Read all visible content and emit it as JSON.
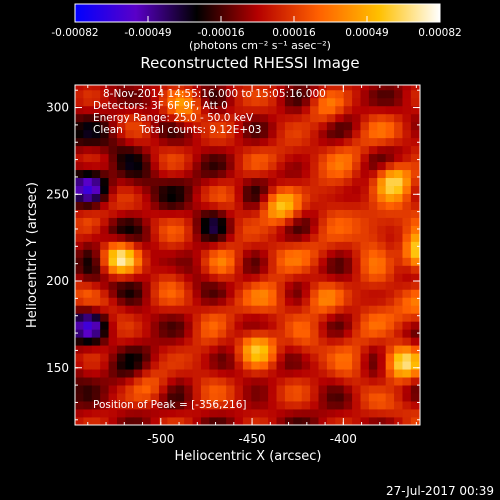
{
  "chart_data": {
    "type": "heatmap",
    "title": "Reconstructed RHESSI Image",
    "xlabel": "Heliocentric X (arcsec)",
    "ylabel": "Heliocentric Y (arcsec)",
    "xlim": [
      -547,
      -358
    ],
    "ylim": [
      117,
      313
    ],
    "xticks": [
      -500,
      -450,
      -400
    ],
    "yticks": [
      150,
      200,
      250,
      300
    ],
    "colorbar": {
      "label": "(photons cm⁻² s⁻¹ asec⁻²)",
      "ticks": [
        "-0.00082",
        "-0.00049",
        "-0.00016",
        "0.00016",
        "0.00049",
        "0.00082"
      ],
      "range": [
        -0.00082,
        0.00082
      ],
      "colors": [
        "#0000ff",
        "#5a00c8",
        "#000000",
        "#b40000",
        "#ff6000",
        "#ffc000",
        "#ffffff"
      ]
    },
    "annotations": [
      "8-Nov-2014 14:55:16.000 to 15:05:16.000",
      "Detectors: 3F 6F 9F, Att 0",
      "Energy Range: 25.0 - 50.0 keV",
      "Clean     Total counts: 9.12E+03"
    ],
    "peak_label": "Position of Peak = [-356,216]",
    "peak_position": [
      -356,
      216
    ],
    "sources": [
      {
        "x": -523,
        "y": 213,
        "intensity": 0.0007
      },
      {
        "x": -435,
        "y": 243,
        "intensity": 0.00062
      },
      {
        "x": -447,
        "y": 162,
        "intensity": 0.00058
      },
      {
        "x": -372,
        "y": 258,
        "intensity": 0.00065
      },
      {
        "x": -356,
        "y": 216,
        "intensity": 0.00082
      },
      {
        "x": -368,
        "y": 153,
        "intensity": 0.00074
      },
      {
        "x": -487,
        "y": 300,
        "intensity": 0.0004
      },
      {
        "x": -410,
        "y": 300,
        "intensity": 0.00032
      },
      {
        "x": -465,
        "y": 210,
        "intensity": 0.0003
      },
      {
        "x": -412,
        "y": 190,
        "intensity": 0.00036
      },
      {
        "x": -505,
        "y": 140,
        "intensity": 0.00028
      }
    ],
    "negative_regions": [
      {
        "x": -540,
        "y": 255,
        "intensity": -0.0005
      },
      {
        "x": -540,
        "y": 175,
        "intensity": -0.00045
      },
      {
        "x": -470,
        "y": 235,
        "intensity": -0.0003
      }
    ]
  },
  "footer": {
    "date": "27-Jul-2017 00:39"
  }
}
